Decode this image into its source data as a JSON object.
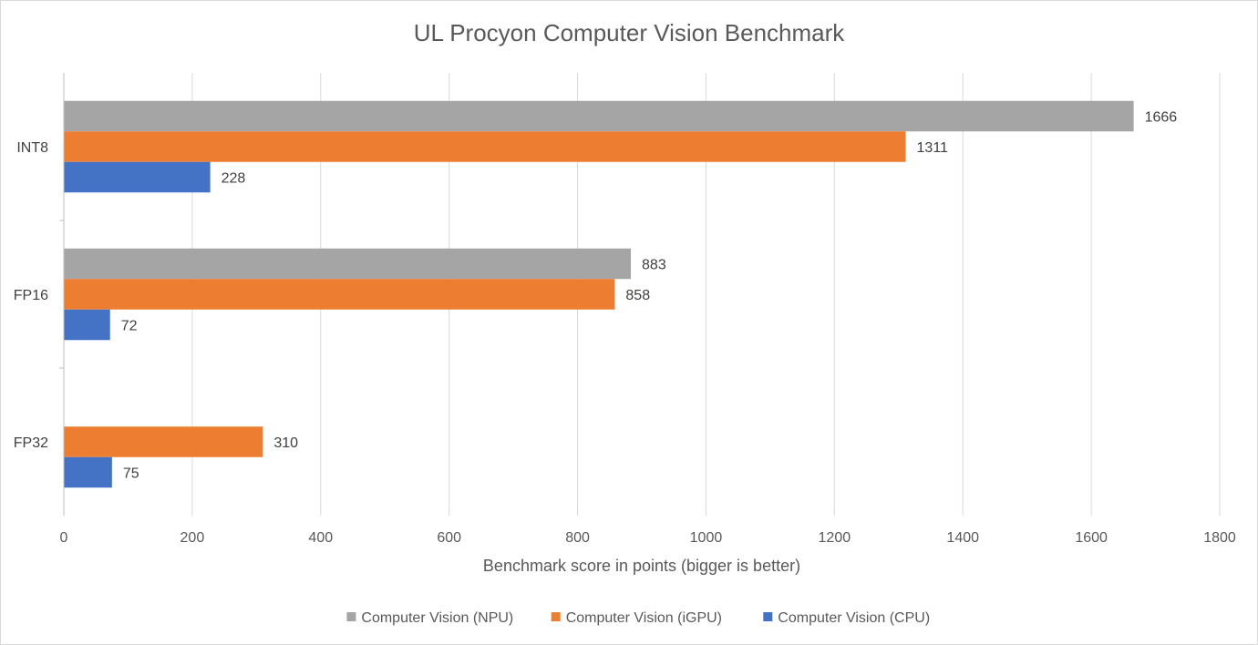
{
  "chart_data": {
    "type": "bar",
    "orientation": "horizontal",
    "title": "UL Procyon Computer Vision Benchmark",
    "xlabel": "Benchmark score in points (bigger is better)",
    "ylabel": "",
    "xlim": [
      0,
      1800
    ],
    "x_ticks": [
      "0",
      "200",
      "400",
      "600",
      "800",
      "1000",
      "1200",
      "1400",
      "1600",
      "1800"
    ],
    "grid": "vertical",
    "legend_position": "bottom",
    "categories": [
      "INT8",
      "FP16",
      "FP32"
    ],
    "series": [
      {
        "name": "Computer Vision (NPU)",
        "color": "#a5a5a5",
        "values": [
          1666,
          883,
          null
        ]
      },
      {
        "name": "Computer Vision (iGPU)",
        "color": "#ed7d31",
        "values": [
          1311,
          858,
          310
        ]
      },
      {
        "name": "Computer Vision (CPU)",
        "color": "#4472c4",
        "values": [
          228,
          72,
          75
        ]
      }
    ]
  }
}
